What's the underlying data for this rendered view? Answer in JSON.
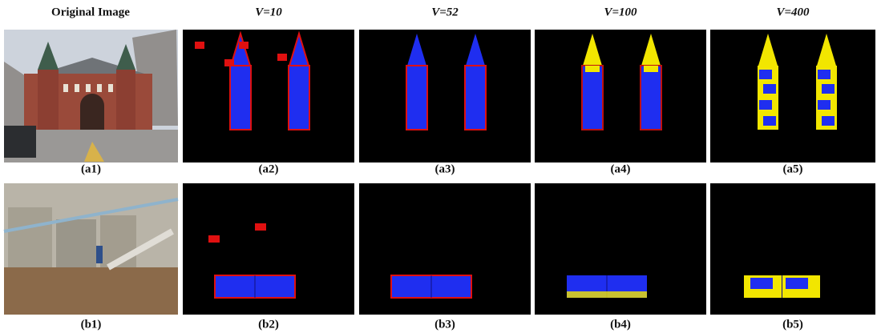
{
  "headers": [
    "Original Image",
    "V=10",
    "V=52",
    "V=100",
    "V=400"
  ],
  "rows": [
    {
      "labels": [
        "(a1)",
        "(a2)",
        "(a3)",
        "(a4)",
        "(a5)"
      ]
    },
    {
      "labels": [
        "(b1)",
        "(b2)",
        "(b3)",
        "(b4)",
        "(b5)"
      ]
    }
  ]
}
